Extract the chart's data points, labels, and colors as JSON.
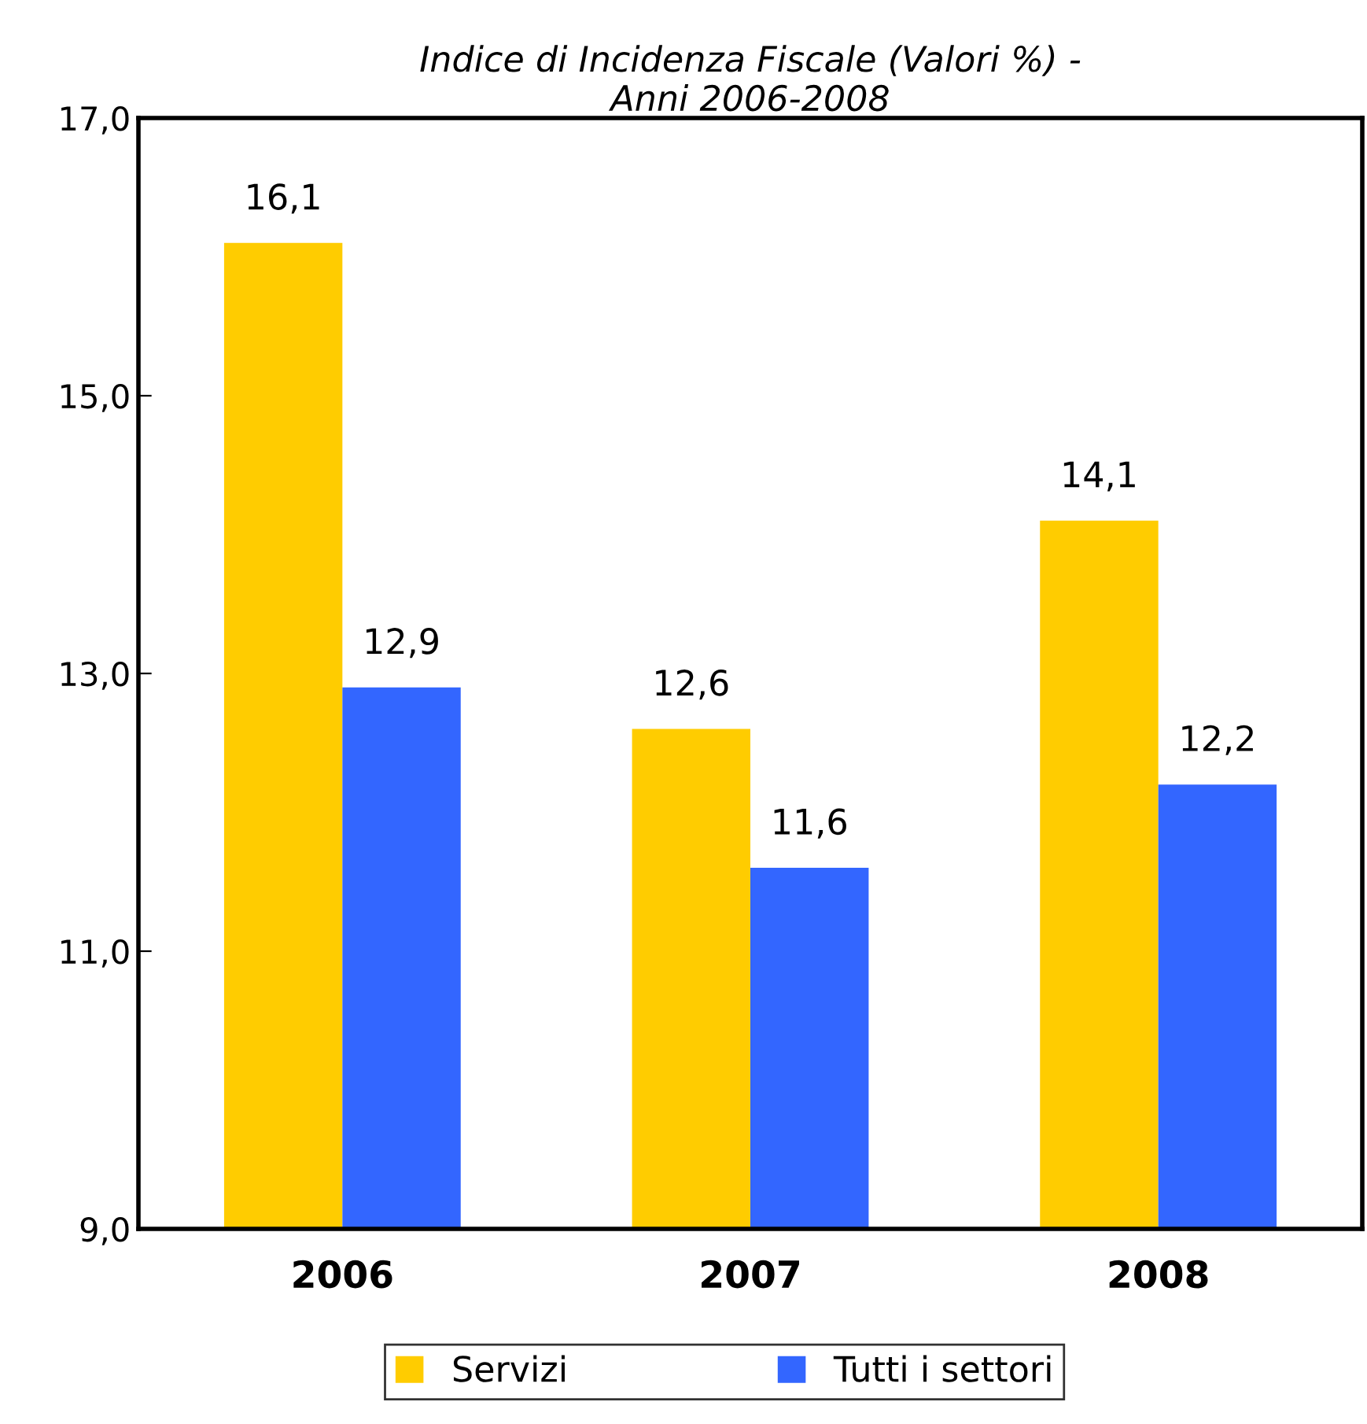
{
  "chart_data": {
    "type": "bar",
    "title": "Indice di Incidenza Fiscale (Valori %) -\nAnni 2006-2008",
    "categories": [
      "2006",
      "2007",
      "2008"
    ],
    "series": [
      {
        "name": "Servizi",
        "color": "#ffcc00",
        "values": [
          16.1,
          12.6,
          14.1
        ],
        "value_labels": [
          "16,1",
          "12,6",
          "14,1"
        ]
      },
      {
        "name": "Tutti i settori",
        "color": "#3366ff",
        "values": [
          12.9,
          11.6,
          12.2
        ],
        "value_labels": [
          "12,9",
          "11,6",
          "12,2"
        ]
      }
    ],
    "ylim": [
      9,
      17
    ],
    "yticks": [
      {
        "value": 9,
        "label": "9,0"
      },
      {
        "value": 11,
        "label": "11,0"
      },
      {
        "value": 13,
        "label": "13,0"
      },
      {
        "value": 15,
        "label": "15,0"
      },
      {
        "value": 17,
        "label": "17,0"
      }
    ],
    "grid": false,
    "legend": "bottom"
  }
}
